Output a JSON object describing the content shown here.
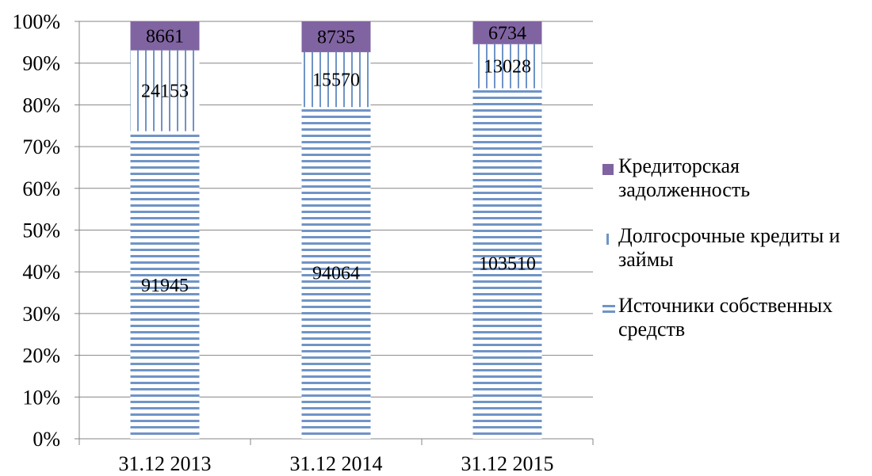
{
  "chart_data": {
    "type": "bar",
    "stacked": "percent",
    "categories": [
      "31.12 2013",
      "31.12 2014",
      "31.12 2015"
    ],
    "series": [
      {
        "name": "Источники собственных средств",
        "values": [
          91945,
          94064,
          103510
        ],
        "color": "#4f81bd",
        "pattern": "horizontal-stripes"
      },
      {
        "name": "Долгосрочные кредиты и займы",
        "values": [
          24153,
          15570,
          13028
        ],
        "color": "#4f81bd",
        "pattern": "vertical-stripes"
      },
      {
        "name": "Кредиторская задолженность",
        "values": [
          8661,
          8735,
          6734
        ],
        "color": "#8064a2",
        "pattern": "solid"
      }
    ],
    "y_ticks": [
      "0%",
      "10%",
      "20%",
      "30%",
      "40%",
      "50%",
      "60%",
      "70%",
      "80%",
      "90%",
      "100%"
    ],
    "ylim": [
      0,
      100
    ],
    "grid": true,
    "legend": {
      "position": "right",
      "order": [
        "Кредиторская задолженность",
        "Долгосрочные кредиты и займы",
        "Источники собственных средств"
      ],
      "lines": [
        [
          "Кредиторская",
          "задолженность"
        ],
        [
          "Долгосрочные кредиты и",
          "займы"
        ],
        [
          "Источники собственных",
          "средств"
        ]
      ]
    },
    "data_labels": true
  }
}
